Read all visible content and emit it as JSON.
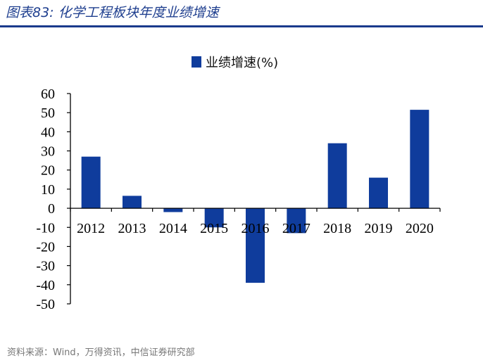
{
  "caption": "图表83:  化学工程板块年度业绩增速",
  "footer": "资料来源：Wind，万得资讯，中信证券研究部",
  "colors": {
    "bar": "#0f3c9c",
    "accent": "#1a3a8c"
  },
  "chart_data": {
    "type": "bar",
    "title": "",
    "xlabel": "",
    "ylabel": "",
    "categories": [
      "2012",
      "2013",
      "2014",
      "2015",
      "2016",
      "2017",
      "2018",
      "2019",
      "2020"
    ],
    "series": [
      {
        "name": "业绩增速(%)",
        "values": [
          27,
          6.5,
          -2,
          -10,
          -39,
          -13,
          34,
          16,
          51.5
        ]
      }
    ],
    "ylim": [
      -50,
      60
    ],
    "yticks": [
      60,
      50,
      40,
      30,
      20,
      10,
      0,
      -10,
      -20,
      -30,
      -40,
      -50
    ],
    "grid": false,
    "legend": "top-center"
  }
}
